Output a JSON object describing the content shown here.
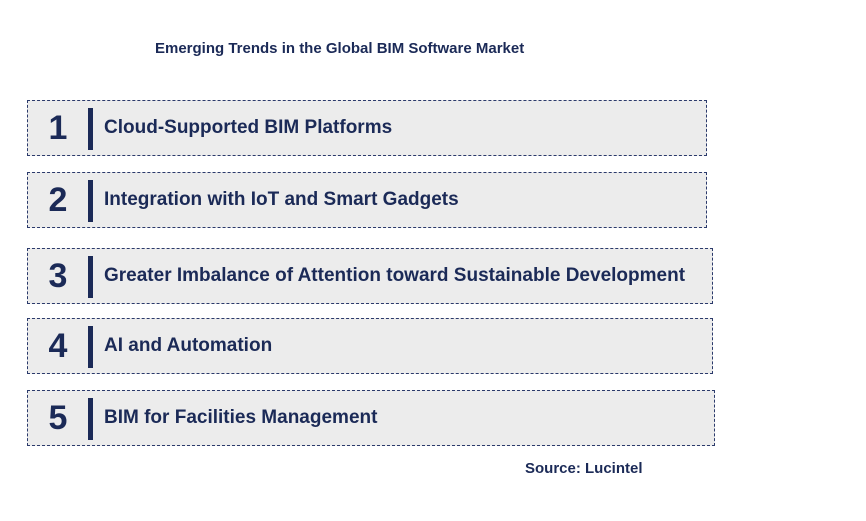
{
  "title": "Emerging Trends in the Global BIM Software Market",
  "trends": [
    {
      "number": "1",
      "label": "Cloud-Supported BIM Platforms"
    },
    {
      "number": "2",
      "label": "Integration with IoT and Smart Gadgets"
    },
    {
      "number": "3",
      "label": "Greater Imbalance of Attention toward Sustainable Development"
    },
    {
      "number": "4",
      "label": "AI and Automation"
    },
    {
      "number": "5",
      "label": "BIM for Facilities Management"
    }
  ],
  "source": "Source: Lucintel",
  "colors": {
    "text": "#1b2a57",
    "box_fill": "#ececec",
    "box_border": "#2b3a6b"
  }
}
